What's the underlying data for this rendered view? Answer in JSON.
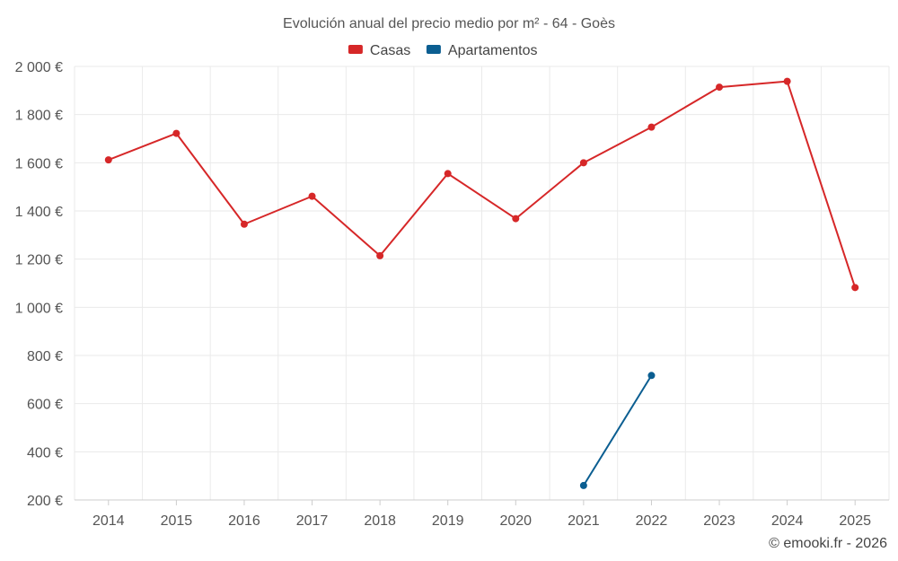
{
  "chart_data": {
    "type": "line",
    "title": "Evolución anual del precio medio por m² - 64 - Goès",
    "categories": [
      "2014",
      "2015",
      "2016",
      "2017",
      "2018",
      "2019",
      "2020",
      "2021",
      "2022",
      "2023",
      "2024",
      "2025"
    ],
    "series": [
      {
        "name": "Casas",
        "color": "#d62728",
        "values": [
          1612,
          1722,
          1345,
          1461,
          1214,
          1555,
          1368,
          1600,
          1748,
          1914,
          1938,
          1082
        ]
      },
      {
        "name": "Apartamentos",
        "color": "#0b5e91",
        "values": [
          null,
          null,
          null,
          null,
          null,
          null,
          null,
          260,
          717,
          null,
          null,
          null
        ]
      }
    ],
    "ylim": [
      200,
      2000
    ],
    "yticks": [
      200,
      400,
      600,
      800,
      1000,
      1200,
      1400,
      1600,
      1800,
      2000
    ],
    "ytick_labels": [
      "200 €",
      "400 €",
      "600 €",
      "800 €",
      "1 000 €",
      "1 200 €",
      "1 400 €",
      "1 600 €",
      "1 800 €",
      "2 000 €"
    ],
    "xlabel": "",
    "ylabel": "",
    "grid": true,
    "legend_position": "top-center"
  },
  "credit": "© emooki.fr - 2026"
}
